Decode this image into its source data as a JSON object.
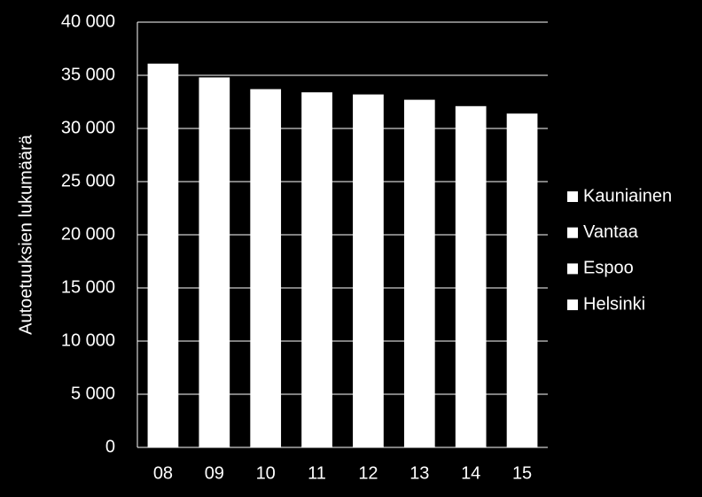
{
  "chart_data": {
    "type": "bar",
    "ylabel": "Autoetuuksien lukumäärä",
    "categories": [
      "08",
      "09",
      "10",
      "11",
      "12",
      "13",
      "14",
      "15"
    ],
    "values": [
      36100,
      34800,
      33700,
      33400,
      33200,
      32700,
      32100,
      31400
    ],
    "color": "#ffffff",
    "legend": [
      "Kauniainen",
      "Vantaa",
      "Espoo",
      "Helsinki"
    ],
    "legend_position": "right",
    "ylim": [
      0,
      40000
    ],
    "yticks": [
      0,
      {
        "value": 5000,
        "label": "5 000"
      },
      {
        "value": 10000,
        "label": "10 000"
      },
      {
        "value": 15000,
        "label": "15 000"
      },
      {
        "value": 20000,
        "label": "20 000"
      },
      {
        "value": 25000,
        "label": "25 000"
      },
      {
        "value": 30000,
        "label": "30 000"
      },
      {
        "value": 35000,
        "label": "35 000"
      },
      {
        "value": 40000,
        "label": "40 000"
      }
    ],
    "grid": true
  }
}
